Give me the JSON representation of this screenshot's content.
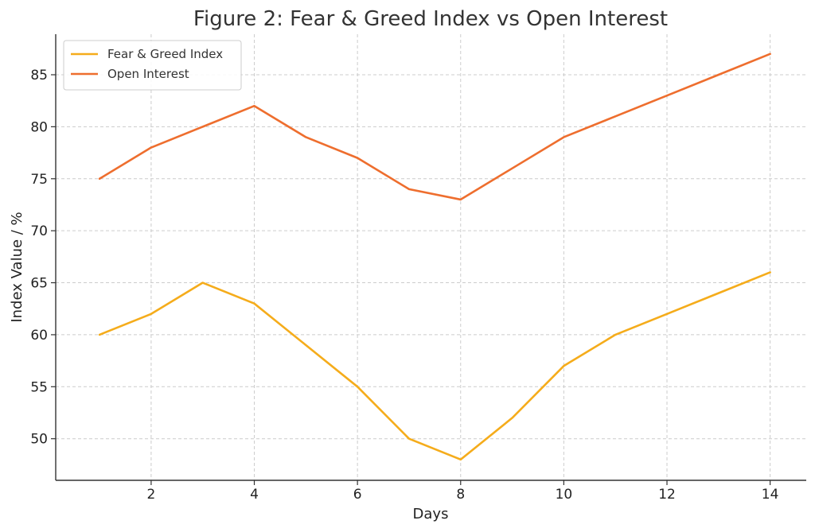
{
  "chart_data": {
    "type": "line",
    "title": "Figure 2: Fear & Greed Index vs Open Interest",
    "xlabel": "Days",
    "ylabel": "Index Value / %",
    "x": [
      1,
      2,
      3,
      4,
      5,
      6,
      7,
      8,
      9,
      10,
      11,
      12,
      13,
      14
    ],
    "xlim": [
      0.15,
      14.7
    ],
    "ylim": [
      46.0,
      88.9
    ],
    "xticks": [
      2,
      4,
      6,
      8,
      10,
      12,
      14
    ],
    "yticks": [
      50,
      55,
      60,
      65,
      70,
      75,
      80,
      85
    ],
    "grid": true,
    "legend_position": "top-left",
    "series": [
      {
        "name": "Fear & Greed Index",
        "color": "#f5ac1b",
        "values": [
          60,
          62,
          65,
          63,
          59,
          55,
          50,
          48,
          52,
          57,
          60,
          62,
          64,
          66
        ]
      },
      {
        "name": "Open Interest",
        "color": "#ee6e2e",
        "values": [
          75,
          78,
          80,
          82,
          79,
          77,
          74,
          73,
          76,
          79,
          81,
          83,
          85,
          87
        ]
      }
    ]
  }
}
